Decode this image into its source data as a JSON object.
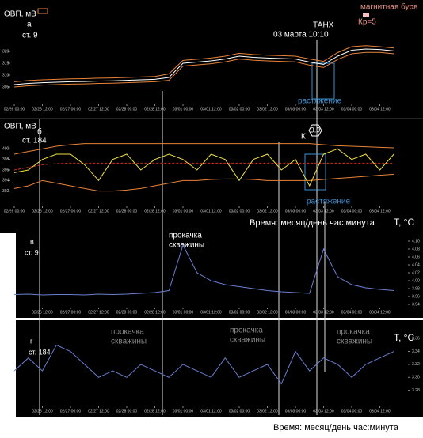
{
  "chart_data": [
    {
      "type": "line",
      "ylabel": "ОВП, мВ",
      "panel": "а",
      "station": "ст. 9",
      "annotations": [
        "магнитная буря",
        "Кр=5",
        "ТАНХ",
        "03 марта 10:10",
        "растяжение"
      ],
      "x": [
        "02/26 00:00",
        "02/26 06:00",
        "02/26 12:00",
        "02/26 18:00",
        "02/27 00:00",
        "02/27 06:00",
        "02/27 12:00",
        "02/27 18:00",
        "02/28 00:00",
        "02/28 06:00",
        "02/28 12:00",
        "02/28 18:00",
        "03/01 00:00",
        "03/01 06:00",
        "03/01 12:00",
        "03/01 18:00",
        "03/02 00:00",
        "03/02 06:00",
        "03/02 12:00",
        "03/02 18:00",
        "03/03 00:00",
        "03/03 06:00",
        "03/03 12:00",
        "03/03 18:00",
        "03/04 00:00",
        "03/04 06:00",
        "03/04 12:00",
        "03/04 18:00"
      ],
      "xlim": [
        "02/26 00:00",
        "03/05 00:00"
      ],
      "xticks": [
        "02/26 00:00",
        "02/26 12:00",
        "02/27 00:00",
        "02/27 12:00",
        "02/28 00:00",
        "02/28 12:00",
        "03/01 00:00",
        "03/01 12:00",
        "03/02 00:00",
        "03/02 12:00",
        "03/03 00:00",
        "03/03 12:00",
        "03/04 00:00",
        "03/04 12:00"
      ],
      "ylim": [
        300,
        325
      ],
      "yticks": [
        305,
        310,
        315,
        320
      ],
      "yaxis": "left",
      "series": [
        {
          "color": "#e8823a",
          "values": [
            307.2,
            307.7,
            308.0,
            308.2,
            308.4,
            308.5,
            308.7,
            308.8,
            309.0,
            309.2,
            309.4,
            310.5,
            316.2,
            316.7,
            317.2,
            318.0,
            319.2,
            318.7,
            318.4,
            318.2,
            318.0,
            316.8,
            315.8,
            319.5,
            322.0,
            322.4,
            322.0,
            321.4
          ]
        },
        {
          "color": "#e8823a",
          "values": [
            305.0,
            305.5,
            305.8,
            306.0,
            306.2,
            306.3,
            306.5,
            306.6,
            306.8,
            307.0,
            307.2,
            307.8,
            313.8,
            314.3,
            314.8,
            315.6,
            316.8,
            316.3,
            316.0,
            315.8,
            315.6,
            314.2,
            313.2,
            316.6,
            319.0,
            319.6,
            319.6,
            319.0
          ]
        },
        {
          "color": "#ffffff",
          "values": [
            306.0,
            306.5,
            306.8,
            307.0,
            307.2,
            307.3,
            307.5,
            307.6,
            307.8,
            308.0,
            308.2,
            309.0,
            315.0,
            315.5,
            316.0,
            316.8,
            318.0,
            317.5,
            317.2,
            317.0,
            316.8,
            315.5,
            314.5,
            318.0,
            320.5,
            321.0,
            320.8,
            320.2
          ]
        }
      ]
    },
    {
      "type": "line",
      "ylabel": "ОВП, мВ",
      "panel": "б",
      "station": "ст. 184",
      "annotations": [
        "К",
        "9.9",
        "растяжение",
        "Время: месяц/день час:минута",
        "Т, °С"
      ],
      "x": [
        "02/26 00:00",
        "02/26 06:00",
        "02/26 12:00",
        "02/26 18:00",
        "02/27 00:00",
        "02/27 06:00",
        "02/27 12:00",
        "02/27 18:00",
        "02/28 00:00",
        "02/28 06:00",
        "02/28 12:00",
        "02/28 18:00",
        "03/01 00:00",
        "03/01 06:00",
        "03/01 12:00",
        "03/01 18:00",
        "03/02 00:00",
        "03/02 06:00",
        "03/02 12:00",
        "03/02 18:00",
        "03/03 00:00",
        "03/03 06:00",
        "03/03 12:00",
        "03/03 18:00",
        "03/04 00:00",
        "03/04 06:00",
        "03/04 12:00",
        "03/04 18:00"
      ],
      "xlim": [
        "02/26 00:00",
        "03/05 00:00"
      ],
      "xticks": [
        "02/26 00:00",
        "02/26 12:00",
        "02/27 00:00",
        "02/27 12:00",
        "02/28 00:00",
        "02/28 12:00",
        "03/01 00:00",
        "03/01 12:00",
        "03/02 00:00",
        "03/02 12:00",
        "03/03 00:00",
        "03/03 12:00",
        "03/04 00:00",
        "03/04 12:00"
      ],
      "ylim": [
        390,
        402
      ],
      "yticks": [
        392,
        394,
        396,
        398,
        400
      ],
      "yaxis": "left",
      "series": [
        {
          "color": "#e8823a",
          "values": [
            399,
            399.5,
            400,
            400.5,
            400.8,
            401,
            401,
            401,
            401,
            401,
            401,
            401,
            401,
            401,
            401,
            401,
            401,
            401,
            401,
            401,
            401,
            401,
            400.8,
            400.6,
            400.5,
            400.4,
            400.3,
            400.2
          ]
        },
        {
          "color": "#e8823a",
          "values": [
            392.5,
            393,
            394,
            393.5,
            393,
            392.5,
            392,
            392,
            392.2,
            392.5,
            393,
            393.5,
            394,
            394,
            394.2,
            394.3,
            394.3,
            394.2,
            394,
            394,
            394,
            394,
            394.2,
            394.4,
            394.6,
            394.8,
            395,
            395.2
          ]
        },
        {
          "color": "#d03020",
          "style": "dashed",
          "values": [
            396,
            396.5,
            397,
            397.2,
            397.3,
            397.3,
            397.3,
            397.3,
            397.3,
            397.3,
            397.3,
            397.3,
            397.3,
            397.3,
            397.3,
            397.3,
            397.3,
            397.3,
            397.3,
            397.3,
            397.3,
            397.3,
            397.3,
            397.3,
            397.3,
            397.3,
            397.3,
            397.3
          ]
        },
        {
          "color": "#f0e040",
          "values": [
            395.5,
            396,
            398,
            399,
            399,
            397,
            394,
            398,
            399,
            396,
            398,
            399,
            398,
            396,
            399,
            398,
            394,
            398,
            399,
            396,
            398,
            393,
            399,
            400,
            398,
            399,
            396,
            399
          ]
        }
      ]
    },
    {
      "type": "line",
      "panel": "в",
      "station": "ст. 9",
      "annotations": [
        "прокачка",
        "скважины"
      ],
      "x": [
        "02/26 00:00",
        "02/26 06:00",
        "02/26 12:00",
        "02/26 18:00",
        "02/27 00:00",
        "02/27 06:00",
        "02/27 12:00",
        "02/27 18:00",
        "02/28 00:00",
        "02/28 06:00",
        "02/28 12:00",
        "02/28 18:00",
        "03/01 00:00",
        "03/01 06:00",
        "03/01 12:00",
        "03/01 18:00",
        "03/02 00:00",
        "03/02 06:00",
        "03/02 12:00",
        "03/02 18:00",
        "03/03 00:00",
        "03/03 06:00",
        "03/03 12:00",
        "03/03 18:00",
        "03/04 00:00",
        "03/04 06:00",
        "03/04 12:00",
        "03/04 18:00"
      ],
      "xlim": [
        "02/26 00:00",
        "03/05 00:00"
      ],
      "xticks": [
        "02/26 12:00",
        "02/27 00:00",
        "02/27 12:00",
        "02/28 00:00",
        "02/28 12:00",
        "03/01 00:00",
        "03/01 12:00",
        "03/02 00:00",
        "03/02 12:00",
        "03/03 00:00",
        "03/03 12:00",
        "03/04 00:00",
        "03/04 12:00"
      ],
      "ylim": [
        3.94,
        4.11
      ],
      "yaxis": "right",
      "yticks": [
        3.94,
        3.96,
        3.98,
        {
          "value": 4.0,
          "label": "4.00"
        },
        4.02,
        4.04,
        4.06,
        4.08,
        {
          "value": 4.1,
          "label": "4.10"
        }
      ],
      "series": [
        {
          "color": "#6a7fd0",
          "values": [
            3.965,
            3.966,
            3.964,
            3.965,
            3.965,
            3.964,
            3.966,
            3.965,
            3.966,
            3.968,
            3.97,
            3.975,
            4.09,
            4.02,
            4.0,
            3.99,
            3.985,
            3.98,
            3.975,
            3.972,
            3.97,
            3.968,
            4.08,
            4.01,
            3.99,
            3.982,
            3.978,
            3.975
          ]
        }
      ]
    },
    {
      "type": "line",
      "panel": "г",
      "station": "ст. 184",
      "annotations": [
        "прокачка",
        "скважины",
        "прокачка",
        "скважины",
        "прокачка",
        "скважины",
        "Т, °С",
        "Время: месяц/день час:минута"
      ],
      "x": [
        "02/26 00:00",
        "02/26 06:00",
        "02/26 12:00",
        "02/26 18:00",
        "02/27 00:00",
        "02/27 06:00",
        "02/27 12:00",
        "02/27 18:00",
        "02/28 00:00",
        "02/28 06:00",
        "02/28 12:00",
        "02/28 18:00",
        "03/01 00:00",
        "03/01 06:00",
        "03/01 12:00",
        "03/01 18:00",
        "03/02 00:00",
        "03/02 06:00",
        "03/02 12:00",
        "03/02 18:00",
        "03/03 00:00",
        "03/03 06:00",
        "03/03 12:00",
        "03/03 18:00",
        "03/04 00:00",
        "03/04 06:00",
        "03/04 12:00",
        "03/04 18:00"
      ],
      "xlim": [
        "02/26 00:00",
        "03/05 00:00"
      ],
      "xticks": [
        "02/26 12:00",
        "02/27 00:00",
        "02/27 12:00",
        "02/28 00:00",
        "02/28 12:00",
        "03/01 00:00",
        "03/01 12:00",
        "03/02 00:00",
        "03/02 12:00",
        "03/03 00:00",
        "03/03 12:00",
        "03/04 00:00",
        "03/04 12:00"
      ],
      "ylim": [
        3.26,
        3.37
      ],
      "yaxis": "right",
      "yticks": [
        3.28,
        {
          "value": 3.3,
          "label": "3.30"
        },
        3.32,
        3.34,
        3.36
      ],
      "series": [
        {
          "color": "#6a7fd0",
          "values": [
            3.31,
            3.33,
            3.31,
            3.35,
            3.34,
            3.32,
            3.3,
            3.31,
            3.3,
            3.32,
            3.31,
            3.3,
            3.32,
            3.31,
            3.3,
            3.33,
            3.3,
            3.31,
            3.32,
            3.29,
            3.34,
            3.31,
            3.33,
            3.32,
            3.3,
            3.32,
            3.33,
            3.34
          ]
        }
      ]
    }
  ]
}
